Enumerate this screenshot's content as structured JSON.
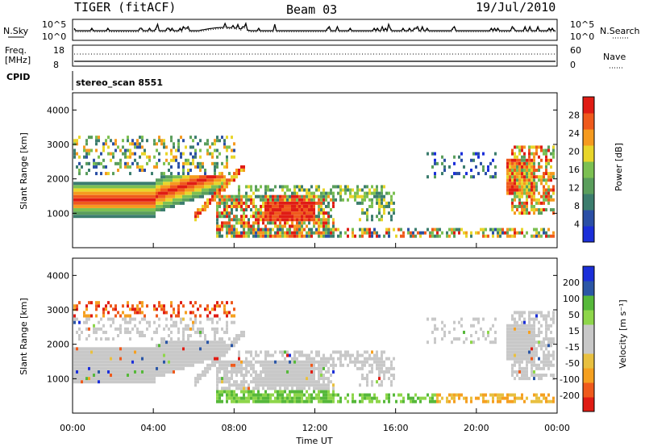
{
  "header": {
    "title": "TIGER (fitACF)",
    "beam": "Beam 03",
    "date": "19/Jul/2010"
  },
  "nsky_panel": {
    "left_label": "N.Sky",
    "right_label": "N.Search",
    "ticks_left": [
      "10^5",
      "10^0"
    ],
    "ticks_right": [
      "10^5",
      "10^0"
    ]
  },
  "freq_panel": {
    "left_label_1": "Freq.",
    "left_label_2": "[MHz]",
    "right_label": "Nave",
    "ticks_left": [
      "18",
      "8"
    ],
    "ticks_right": [
      "60",
      "0"
    ]
  },
  "cpid": {
    "label": "CPID",
    "value": "stereo_scan 8551"
  },
  "colors": {
    "power": [
      "#1b2fd9",
      "#2b4fa5",
      "#3c7d6e",
      "#5a9e5c",
      "#7cc052",
      "#e8d52a",
      "#f59a1f",
      "#ef5a1c",
      "#e01c14"
    ],
    "velocity": [
      "#e01c14",
      "#ef5a1c",
      "#f5a020",
      "#e8c040",
      "#c8c8c8",
      "#c8c8c8",
      "#8ed64a",
      "#56b83a",
      "#2b56a5",
      "#1b2fd9"
    ]
  },
  "chart_data": [
    {
      "type": "heatmap",
      "panel": "power",
      "ylabel": "Slant Range [km]",
      "yticks": [
        1000,
        2000,
        3000,
        4000
      ],
      "ylim": [
        0,
        4500
      ],
      "xlim": [
        0,
        24
      ],
      "colorbar": {
        "label": "Power [dB]",
        "ticks": [
          "4",
          "8",
          "12",
          "16",
          "20",
          "24",
          "28"
        ]
      }
    },
    {
      "type": "heatmap",
      "panel": "velocity",
      "ylabel": "Slant Range [km]",
      "xlabel": "Time UT",
      "yticks": [
        1000,
        2000,
        3000,
        4000
      ],
      "ylim": [
        0,
        4500
      ],
      "xlim": [
        0,
        24
      ],
      "xticks": [
        "00:00",
        "04:00",
        "08:00",
        "12:00",
        "16:00",
        "20:00",
        "00:00"
      ],
      "colorbar": {
        "label": "Velocity [m s⁻¹]",
        "ticks": [
          "200",
          "100",
          "50",
          "15",
          "-15",
          "-50",
          "-100",
          "-200"
        ]
      }
    }
  ]
}
